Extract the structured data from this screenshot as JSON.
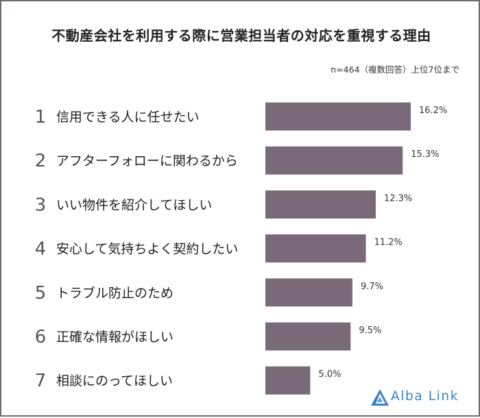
{
  "title": "不動産会社を利用する際に営業担当者の対応を重視する理由",
  "subtitle": "n=464（複数回答）上位7位まで",
  "logo_text": "Alba Link",
  "colors": {
    "bar": "#7a6a79",
    "frame": "#6f6a72",
    "rank": "#555555",
    "label": "#222222",
    "value": "#333333",
    "logo": "#3c7fc4"
  },
  "chart_data": {
    "type": "bar",
    "orientation": "horizontal",
    "title": "不動産会社を利用する際に営業担当者の対応を重視する理由",
    "subtitle": "n=464（複数回答）上位7位まで",
    "ranks": [
      "1",
      "2",
      "3",
      "4",
      "5",
      "6",
      "7"
    ],
    "categories": [
      "信用できる人に任せたい",
      "アフターフォローに関わるから",
      "いい物件を紹介してほしい",
      "安心して気持ちよく契約したい",
      "トラブル防止のため",
      "正確な情報がほしい",
      "相談にのってほしい"
    ],
    "values": [
      16.2,
      15.3,
      12.3,
      11.2,
      9.7,
      9.5,
      5.0
    ],
    "value_labels": [
      "16.2%",
      "15.3%",
      "12.3%",
      "11.2%",
      "9.7%",
      "9.5%",
      "5.0%"
    ],
    "unit": "%",
    "xlim": [
      0,
      16.2
    ]
  }
}
